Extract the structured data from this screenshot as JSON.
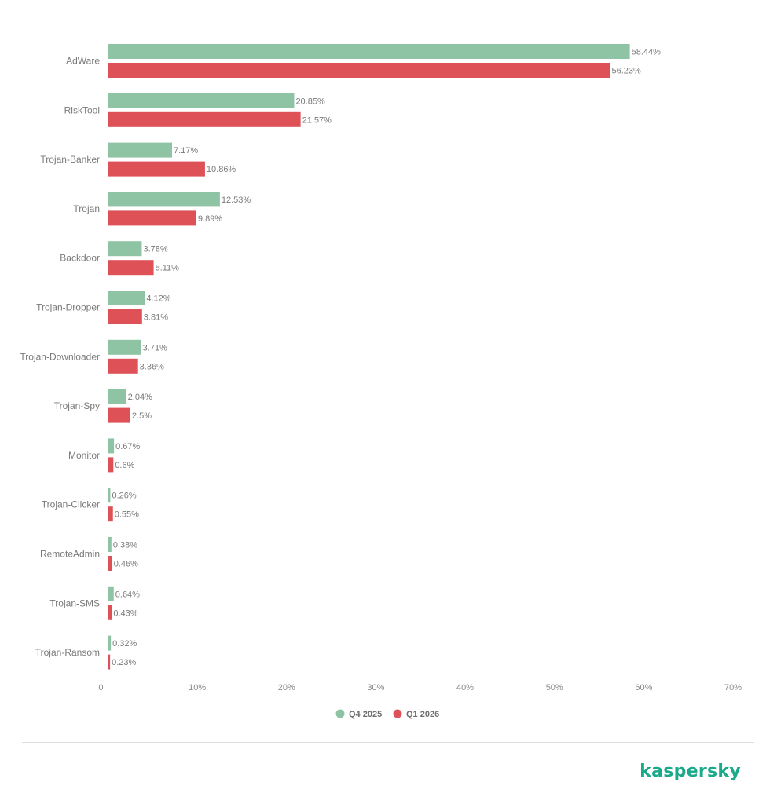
{
  "chart_data": {
    "type": "bar",
    "orientation": "horizontal",
    "categories": [
      "AdWare",
      "RiskTool",
      "Trojan-Banker",
      "Trojan",
      "Backdoor",
      "Trojan-Dropper",
      "Trojan-Downloader",
      "Trojan-Spy",
      "Monitor",
      "Trojan-Clicker",
      "RemoteAdmin",
      "Trojan-SMS",
      "Trojan-Ransom"
    ],
    "series": [
      {
        "name": "Q4 2025",
        "color": "#8ec4a4",
        "values": [
          58.44,
          20.85,
          7.17,
          12.53,
          3.78,
          4.12,
          3.71,
          2.04,
          0.67,
          0.26,
          0.38,
          0.64,
          0.32
        ],
        "labels": [
          "58.44%",
          "20.85%",
          "7.17%",
          "12.53%",
          "3.78%",
          "4.12%",
          "3.71%",
          "2.04%",
          "0.67%",
          "0.26%",
          "0.38%",
          "0.64%",
          "0.32%"
        ]
      },
      {
        "name": "Q1 2026",
        "color": "#de5157",
        "values": [
          56.23,
          21.57,
          10.86,
          9.89,
          5.11,
          3.81,
          3.36,
          2.5,
          0.6,
          0.55,
          0.46,
          0.43,
          0.23
        ],
        "labels": [
          "56.23%",
          "21.57%",
          "10.86%",
          "9.89%",
          "5.11%",
          "3.81%",
          "3.36%",
          "2.5%",
          "0.6%",
          "0.55%",
          "0.46%",
          "0.43%",
          "0.23%"
        ]
      }
    ],
    "xlim": [
      0,
      70
    ],
    "xticks": [
      0,
      10,
      20,
      30,
      40,
      50,
      60,
      70
    ],
    "xtick_labels": [
      "0",
      "10%",
      "20%",
      "30%",
      "40%",
      "50%",
      "60%",
      "70%"
    ],
    "grid": false,
    "legend_position": "bottom-center"
  },
  "brand": {
    "logo_text": "kaspersky",
    "color": "#1aa98a"
  }
}
